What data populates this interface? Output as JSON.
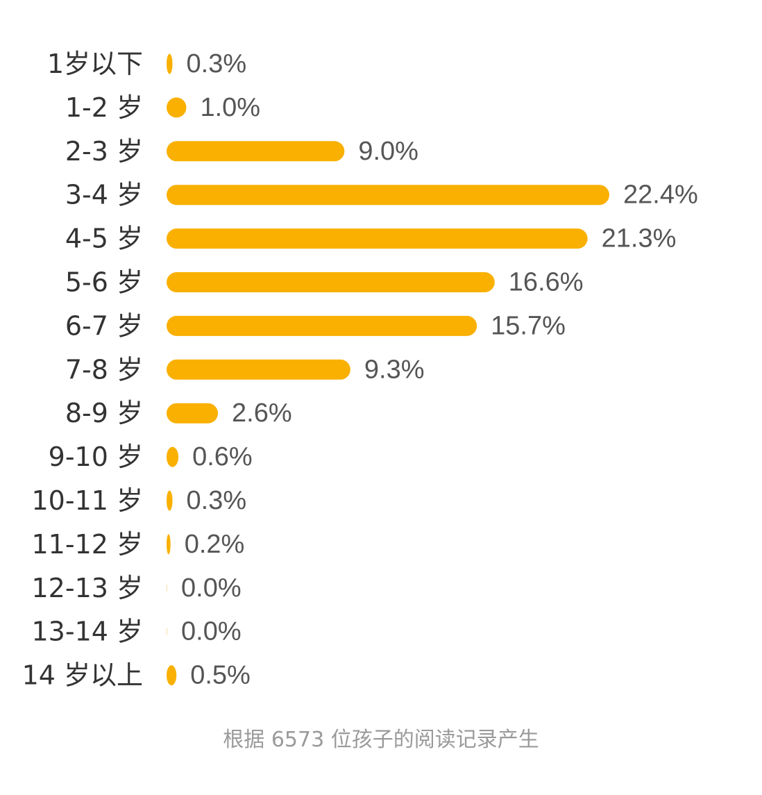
{
  "chart_data": {
    "type": "bar",
    "orientation": "horizontal",
    "categories": [
      "1岁以下",
      "1-2 岁",
      "2-3 岁",
      "3-4 岁",
      "4-5 岁",
      "5-6 岁",
      "6-7 岁",
      "7-8 岁",
      "8-9 岁",
      "9-10 岁",
      "10-11 岁",
      "11-12 岁",
      "12-13 岁",
      "13-14 岁",
      "14 岁以上"
    ],
    "values": [
      0.3,
      1.0,
      9.0,
      22.4,
      21.3,
      16.6,
      15.7,
      9.3,
      2.6,
      0.6,
      0.3,
      0.2,
      0.0,
      0.0,
      0.5
    ],
    "value_labels": [
      "0.3%",
      "1.0%",
      "9.0%",
      "22.4%",
      "21.3%",
      "16.6%",
      "15.7%",
      "9.3%",
      "2.6%",
      "0.6%",
      "0.3%",
      "0.2%",
      "0.0%",
      "0.0%",
      "0.5%"
    ],
    "unit": "%",
    "xlim": [
      0,
      22.4
    ],
    "grid": false,
    "bar_color": "#F9B000"
  },
  "footnote": "根据 6573 位孩子的阅读记录产生"
}
